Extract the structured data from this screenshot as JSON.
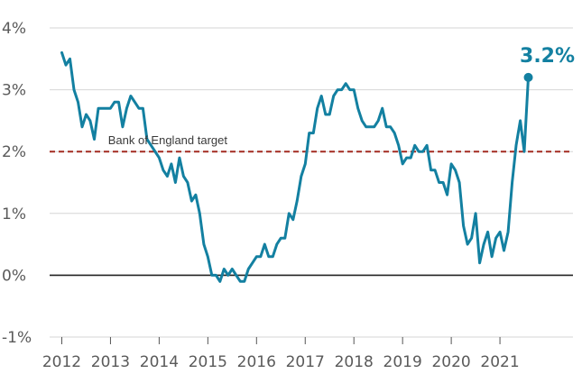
{
  "chart_data": {
    "type": "line",
    "title": "",
    "xlabel": "",
    "ylabel": "",
    "xlim": [
      2011.75,
      2022.5
    ],
    "ylim": [
      -1,
      4
    ],
    "grid": true,
    "y_ticks": [
      {
        "value": 4,
        "label": "4%"
      },
      {
        "value": 3,
        "label": "3%"
      },
      {
        "value": 2,
        "label": "2%"
      },
      {
        "value": 1,
        "label": "1%"
      },
      {
        "value": 0,
        "label": "0%"
      },
      {
        "value": -1,
        "label": "-1%"
      }
    ],
    "x_ticks": [
      {
        "value": 2012,
        "label": "2012"
      },
      {
        "value": 2013,
        "label": "2013"
      },
      {
        "value": 2014,
        "label": "2014"
      },
      {
        "value": 2015,
        "label": "2015"
      },
      {
        "value": 2016,
        "label": "2016"
      },
      {
        "value": 2017,
        "label": "2017"
      },
      {
        "value": 2018,
        "label": "2018"
      },
      {
        "value": 2019,
        "label": "2019"
      },
      {
        "value": 2020,
        "label": "2020"
      },
      {
        "value": 2021,
        "label": "2021"
      }
    ],
    "reference_line": {
      "value": 2,
      "label": "Bank of England target",
      "color": "#a32b20",
      "style": "dashed"
    },
    "zero_line": {
      "value": 0,
      "color": "#222222"
    },
    "series": [
      {
        "color": "#1380a1",
        "x": [
          2012.0,
          2012.083,
          2012.167,
          2012.25,
          2012.333,
          2012.417,
          2012.5,
          2012.583,
          2012.667,
          2012.75,
          2012.833,
          2012.917,
          2013.0,
          2013.083,
          2013.167,
          2013.25,
          2013.333,
          2013.417,
          2013.5,
          2013.583,
          2013.667,
          2013.75,
          2013.833,
          2013.917,
          2014.0,
          2014.083,
          2014.167,
          2014.25,
          2014.333,
          2014.417,
          2014.5,
          2014.583,
          2014.667,
          2014.75,
          2014.833,
          2014.917,
          2015.0,
          2015.083,
          2015.167,
          2015.25,
          2015.333,
          2015.417,
          2015.5,
          2015.583,
          2015.667,
          2015.75,
          2015.833,
          2015.917,
          2016.0,
          2016.083,
          2016.167,
          2016.25,
          2016.333,
          2016.417,
          2016.5,
          2016.583,
          2016.667,
          2016.75,
          2016.833,
          2016.917,
          2017.0,
          2017.083,
          2017.167,
          2017.25,
          2017.333,
          2017.417,
          2017.5,
          2017.583,
          2017.667,
          2017.75,
          2017.833,
          2017.917,
          2018.0,
          2018.083,
          2018.167,
          2018.25,
          2018.333,
          2018.417,
          2018.5,
          2018.583,
          2018.667,
          2018.75,
          2018.833,
          2018.917,
          2019.0,
          2019.083,
          2019.167,
          2019.25,
          2019.333,
          2019.417,
          2019.5,
          2019.583,
          2019.667,
          2019.75,
          2019.833,
          2019.917,
          2020.0,
          2020.083,
          2020.167,
          2020.25,
          2020.333,
          2020.417,
          2020.5,
          2020.583,
          2020.667,
          2020.75,
          2020.833,
          2020.917,
          2021.0,
          2021.083,
          2021.167,
          2021.25,
          2021.333,
          2021.417,
          2021.5,
          2021.583
        ],
        "y": [
          3.6,
          3.4,
          3.5,
          3.0,
          2.8,
          2.4,
          2.6,
          2.5,
          2.2,
          2.7,
          2.7,
          2.7,
          2.7,
          2.8,
          2.8,
          2.4,
          2.7,
          2.9,
          2.8,
          2.7,
          2.7,
          2.2,
          2.1,
          2.0,
          1.9,
          1.7,
          1.6,
          1.8,
          1.5,
          1.9,
          1.6,
          1.5,
          1.2,
          1.3,
          1.0,
          0.5,
          0.3,
          0.0,
          0.0,
          -0.1,
          0.1,
          0.0,
          0.1,
          0.0,
          -0.1,
          -0.1,
          0.1,
          0.2,
          0.3,
          0.3,
          0.5,
          0.3,
          0.3,
          0.5,
          0.6,
          0.6,
          1.0,
          0.9,
          1.2,
          1.6,
          1.8,
          2.3,
          2.3,
          2.7,
          2.9,
          2.6,
          2.6,
          2.9,
          3.0,
          3.0,
          3.1,
          3.0,
          3.0,
          2.7,
          2.5,
          2.4,
          2.4,
          2.4,
          2.5,
          2.7,
          2.4,
          2.4,
          2.3,
          2.1,
          1.8,
          1.9,
          1.9,
          2.1,
          2.0,
          2.0,
          2.1,
          1.7,
          1.7,
          1.5,
          1.5,
          1.3,
          1.8,
          1.7,
          1.5,
          0.8,
          0.5,
          0.6,
          1.0,
          0.2,
          0.5,
          0.7,
          0.3,
          0.6,
          0.7,
          0.4,
          0.7,
          1.5,
          2.1,
          2.5,
          2.0,
          3.2
        ]
      }
    ],
    "last_value_label": "3.2%"
  }
}
